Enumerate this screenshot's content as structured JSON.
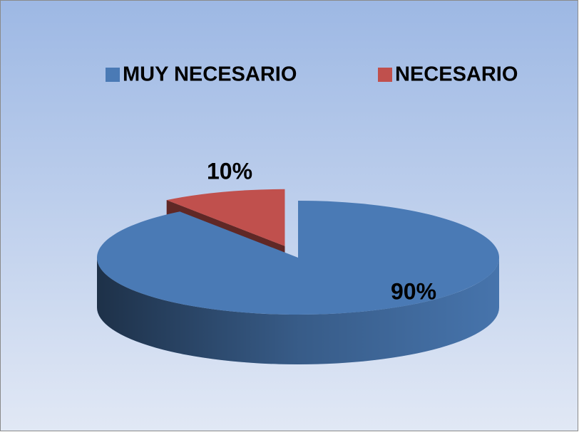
{
  "chart_data": {
    "type": "pie3d",
    "categories": [
      "MUY NECESARIO",
      "NECESARIO"
    ],
    "values": [
      90,
      10
    ],
    "value_labels": [
      "90%",
      "10%"
    ],
    "colors": [
      "#4a7ab5",
      "#c0504d"
    ],
    "exploded": [
      false,
      true
    ],
    "legend": "top"
  }
}
